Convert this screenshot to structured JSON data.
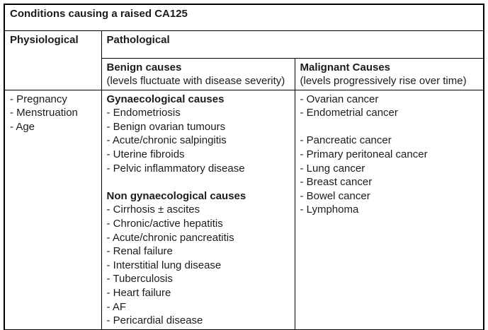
{
  "table": {
    "title": "Conditions causing a raised CA125",
    "physiological": {
      "header": "Physiological",
      "lines": [
        {
          "text": "- Pregnancy"
        },
        {
          "text": "- Menstruation"
        },
        {
          "text": "- Age"
        }
      ]
    },
    "pathological": {
      "header": "Pathological",
      "benign": {
        "header": "Benign causes",
        "subheader": "(levels fluctuate with disease severity)",
        "lines": [
          {
            "text": "Gynaecological causes",
            "bold": true
          },
          {
            "text": "- Endometriosis"
          },
          {
            "text": "- Benign ovarian tumours"
          },
          {
            "text": "- Acute/chronic salpingitis"
          },
          {
            "text": "- Uterine fibroids"
          },
          {
            "text": "- Pelvic inflammatory disease"
          },
          {
            "text": ""
          },
          {
            "text": "Non gynaecological causes",
            "bold": true
          },
          {
            "text": "- Cirrhosis ± ascites"
          },
          {
            "text": "- Chronic/active hepatitis"
          },
          {
            "text": "- Acute/chronic pancreatitis"
          },
          {
            "text": "- Renal failure"
          },
          {
            "text": "- Interstitial lung disease"
          },
          {
            "text": "- Tuberculosis"
          },
          {
            "text": "- Heart failure"
          },
          {
            "text": "- AF"
          },
          {
            "text": "- Pericardial disease"
          }
        ]
      },
      "malignant": {
        "header": "Malignant Causes",
        "subheader": "(levels progressively rise over time)",
        "lines": [
          {
            "text": "- Ovarian cancer"
          },
          {
            "text": "- Endometrial cancer"
          },
          {
            "text": ""
          },
          {
            "text": "- Pancreatic cancer"
          },
          {
            "text": "- Primary peritoneal cancer"
          },
          {
            "text": "- Lung cancer"
          },
          {
            "text": "- Breast cancer"
          },
          {
            "text": "- Bowel cancer"
          },
          {
            "text": "- Lymphoma"
          }
        ]
      }
    }
  },
  "colors": {
    "border": "#000000",
    "text": "#1c1c1c",
    "background": "#ffffff"
  }
}
